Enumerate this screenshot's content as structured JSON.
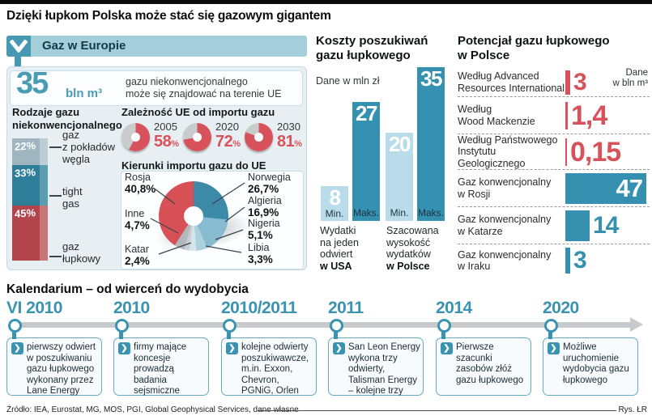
{
  "page": {
    "title": "Dzięki łupkom Polska może stać się gazowym gigantem",
    "source": "Źródło: IEA, Eurostat, MG, MOS, PGI, Global Geophysical Services, dane własne",
    "credit": "Rys. ŁR"
  },
  "colors": {
    "teal": "#3591af",
    "header_bar_bg": "#a4ceda",
    "header_icon_bg": "#4799b3",
    "panel_bg": "#e8eff3",
    "bar_light": "#b9dcea",
    "bar_dark": "#3591af",
    "red": "#d7525a",
    "donut_rest": "#c8cccd",
    "timeline_line": "#c6cacc",
    "timeline_box_border": "#63abc2"
  },
  "glyphs": {
    "chevron_right": "❯"
  },
  "icons": {
    "panel_header_icon": "chevron-down",
    "timeline_bullet_icon": "chevron-right"
  },
  "europe": {
    "header": "Gaz w Europie",
    "headline": {
      "value": "35",
      "unit": "bln m³",
      "desc": "gazu niekonwencjonalnego\nmoże się znajdować na terenie UE"
    },
    "types": {
      "heading": "Rodzaje gazu\nniekonwencjonalnego",
      "segments": [
        {
          "pct": "22%",
          "value": 22,
          "label": "gaz\nz pokładów\nwęgla",
          "color": "#9fb6c0",
          "side": "#bccdd5"
        },
        {
          "pct": "33%",
          "value": 33,
          "label": "tight\ngas",
          "color": "#2e7e99",
          "side": "#5a9cb0"
        },
        {
          "pct": "45%",
          "value": 45,
          "label": "gaz\nłupkowy",
          "color": "#b2454b",
          "side": "#c9767b"
        }
      ]
    },
    "dependency": {
      "heading": "Zależność UE od importu gazu",
      "suffix": "%",
      "items": [
        {
          "year": "2005",
          "value": 58,
          "label": "58"
        },
        {
          "year": "2020",
          "value": 72,
          "label": "72"
        },
        {
          "year": "2030",
          "value": 81,
          "label": "81"
        }
      ]
    },
    "imports": {
      "heading": "Kierunki importu gazu do UE",
      "slices": [
        {
          "name": "Norwegia",
          "pct": "26,7%",
          "value": 26.7,
          "color": "#3d8aa8"
        },
        {
          "name": "Algieria",
          "pct": "16,9%",
          "value": 16.9,
          "color": "#87bbcf"
        },
        {
          "name": "Nigeria",
          "pct": "5,1%",
          "value": 5.1,
          "color": "#abd0de"
        },
        {
          "name": "Libia",
          "pct": "3,3%",
          "value": 3.3,
          "color": "#d3e6ee"
        },
        {
          "name": "Katar",
          "pct": "2,4%",
          "value": 2.4,
          "color": "#c9cdd0"
        },
        {
          "name": "Inne",
          "pct": "4,7%",
          "value": 4.7,
          "color": "#b2b8bb"
        },
        {
          "name": "Rosja",
          "pct": "40,8%",
          "value": 40.8,
          "color": "#d75056"
        }
      ]
    }
  },
  "costs": {
    "title": "Koszty poszukiwań\ngazu łupkowego",
    "note": "Dane w mln zł",
    "bars": [
      {
        "value": 8,
        "label": "8",
        "axis": "Min.",
        "shade": "light"
      },
      {
        "value": 27,
        "label": "27",
        "axis": "Maks.",
        "shade": "dark"
      },
      {
        "value": 20,
        "label": "20",
        "axis": "Min.",
        "shade": "light"
      },
      {
        "value": 35,
        "label": "35",
        "axis": "Maks.",
        "shade": "dark"
      }
    ],
    "groups": [
      {
        "caption": "Wydatki\nna jeden\nodwiert",
        "bold": "w USA"
      },
      {
        "caption": "Szacowana\nwysokość\nwydatków",
        "bold": "w Polsce"
      }
    ]
  },
  "potential": {
    "title": "Potencjał gazu łupkowego\nw Polsce",
    "note": "Dane\nw bln m³",
    "rows": [
      {
        "label": "Według Advanced\nResources International",
        "value": 3,
        "display": "3",
        "color": "red"
      },
      {
        "label": "Według\nWood Mackenzie",
        "value": 1.4,
        "display": "1,4",
        "color": "red"
      },
      {
        "label": "Według Państwowego\nInstytutu Geologicznego",
        "value": 0.15,
        "display": "0,15",
        "color": "red"
      },
      {
        "label": "Gaz konwencjonalny\nw Rosji",
        "value": 47,
        "display": "47",
        "color": "teal"
      },
      {
        "label": "Gaz konwencjonalny\nw Katarze",
        "value": 14,
        "display": "14",
        "color": "teal"
      },
      {
        "label": "Gaz konwencjonalny\nw Iraku",
        "value": 3,
        "display": "3",
        "color": "teal"
      }
    ]
  },
  "timeline": {
    "heading": "Kalendarium – od wierceń do wydobycia",
    "events": [
      {
        "year": "VI 2010",
        "text": "pierwszy odwiert w poszukiwaniu gazu łupkowego wykonany przez Lane Energy"
      },
      {
        "year": "2010",
        "text": "firmy mające koncesje prowadzą badania sejsmiczne"
      },
      {
        "year": "2010/2011",
        "text": "kolejne odwierty poszukiwawcze, m.in. Exxon, Chevron, PGNiG, Orlen"
      },
      {
        "year": "2011",
        "text": "San Leon Energy wykona trzy odwierty, Talisman Energy – kolejne trzy"
      },
      {
        "year": "2014",
        "text": "Pierwsze szacunki zasobów złóż gazu łupkowego"
      },
      {
        "year": "2020",
        "text": "Możliwe uruchomienie wydobycia gazu łupkowego"
      }
    ]
  },
  "chart_data": [
    {
      "type": "bar",
      "title": "Rodzaje gazu niekonwencjonalnego",
      "subtitle": "35 bln m³ gazu niekonwencjonalnego może się znajdować na terenie UE",
      "categories": [
        "gaz z pokładów węgla",
        "tight gas",
        "gaz łupkowy"
      ],
      "values": [
        22,
        33,
        45
      ],
      "unit": "%",
      "layout": "single stacked column"
    },
    {
      "type": "pie",
      "title": "Zależność UE od importu gazu",
      "series": [
        {
          "name": "2005",
          "value": 58
        },
        {
          "name": "2020",
          "value": 72
        },
        {
          "name": "2030",
          "value": 81
        }
      ],
      "unit": "%",
      "layout": "three donuts, red share vs gray remainder"
    },
    {
      "type": "pie",
      "title": "Kierunki importu gazu do UE",
      "categories": [
        "Norwegia",
        "Algieria",
        "Nigeria",
        "Libia",
        "Katar",
        "Inne",
        "Rosja"
      ],
      "values": [
        26.7,
        16.9,
        5.1,
        3.3,
        2.4,
        4.7,
        40.8
      ],
      "unit": "%"
    },
    {
      "type": "bar",
      "title": "Koszty poszukiwań gazu łupkowego",
      "categories": [
        "Min. USA",
        "Maks. USA",
        "Min. Polska",
        "Maks. Polska"
      ],
      "values": [
        8,
        27,
        20,
        35
      ],
      "unit": "mln zł",
      "groups": [
        "Wydatki na jeden odwiert w USA",
        "Szacowana wysokość wydatków w Polsce"
      ],
      "ylim": [
        0,
        35
      ]
    },
    {
      "type": "bar",
      "title": "Potencjał gazu łupkowego w Polsce",
      "categories": [
        "Według Advanced Resources International",
        "Według Wood Mackenzie",
        "Według Państwowego Instytutu Geologicznego",
        "Gaz konwencjonalny w Rosji",
        "Gaz konwencjonalny w Katarze",
        "Gaz konwencjonalny w Iraku"
      ],
      "values": [
        3,
        1.4,
        0.15,
        47,
        14,
        3
      ],
      "unit": "bln m³",
      "orientation": "horizontal"
    }
  ]
}
